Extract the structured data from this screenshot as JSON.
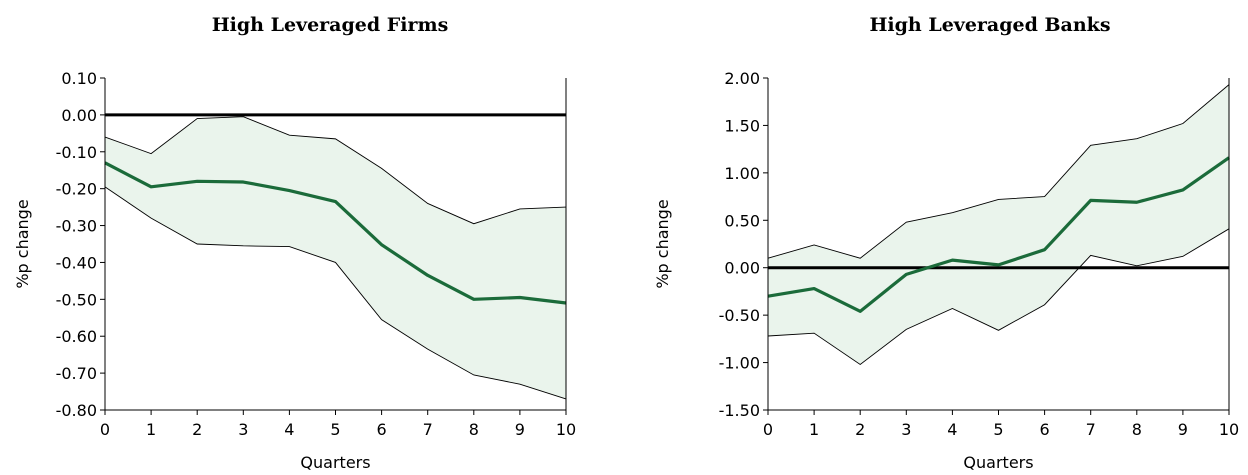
{
  "chart_data": [
    {
      "type": "line",
      "title": "High Leveraged Firms",
      "xlabel": "Quarters",
      "ylabel": "%p change",
      "x": [
        0,
        1,
        2,
        3,
        4,
        5,
        6,
        7,
        8,
        9,
        10
      ],
      "xlim": [
        0,
        10
      ],
      "ylim": [
        -0.8,
        0.1
      ],
      "yticks": [
        "0.10",
        "0.00",
        "-0.10",
        "-0.20",
        "-0.30",
        "-0.40",
        "-0.50",
        "-0.60",
        "-0.70",
        "-0.80"
      ],
      "xticks": [
        "0",
        "1",
        "2",
        "3",
        "4",
        "5",
        "6",
        "7",
        "8",
        "9",
        "10"
      ],
      "reference_line": 0,
      "grid": false,
      "series": [
        {
          "role": "upper",
          "values": [
            -0.06,
            -0.105,
            -0.01,
            -0.005,
            -0.055,
            -0.065,
            -0.145,
            -0.24,
            -0.295,
            -0.255,
            -0.25
          ]
        },
        {
          "role": "estimate",
          "values": [
            -0.13,
            -0.195,
            -0.18,
            -0.182,
            -0.205,
            -0.235,
            -0.352,
            -0.435,
            -0.5,
            -0.495,
            -0.51
          ]
        },
        {
          "role": "lower",
          "values": [
            -0.195,
            -0.28,
            -0.35,
            -0.355,
            -0.357,
            -0.4,
            -0.555,
            -0.635,
            -0.705,
            -0.73,
            -0.77
          ]
        }
      ],
      "colors": {
        "line": "#1b6b3a",
        "band": "#eaf4ec",
        "bound": "#000000"
      }
    },
    {
      "type": "line",
      "title": "High Leveraged Banks",
      "xlabel": "Quarters",
      "ylabel": "%p change",
      "x": [
        0,
        1,
        2,
        3,
        4,
        5,
        6,
        7,
        8,
        9,
        10
      ],
      "xlim": [
        0,
        10
      ],
      "ylim": [
        -1.5,
        2.0
      ],
      "yticks": [
        "2.00",
        "1.50",
        "1.00",
        "0.50",
        "0.00",
        "-0.50",
        "-1.00",
        "-1.50"
      ],
      "xticks": [
        "0",
        "1",
        "2",
        "3",
        "4",
        "5",
        "6",
        "7",
        "8",
        "9",
        "10"
      ],
      "reference_line": 0,
      "grid": false,
      "series": [
        {
          "role": "upper",
          "values": [
            0.1,
            0.24,
            0.1,
            0.48,
            0.58,
            0.72,
            0.75,
            1.29,
            1.36,
            1.52,
            1.93
          ]
        },
        {
          "role": "estimate",
          "values": [
            -0.3,
            -0.22,
            -0.46,
            -0.07,
            0.08,
            0.03,
            0.19,
            0.71,
            0.69,
            0.82,
            1.16
          ]
        },
        {
          "role": "lower",
          "values": [
            -0.72,
            -0.69,
            -1.02,
            -0.65,
            -0.43,
            -0.66,
            -0.39,
            0.13,
            0.02,
            0.12,
            0.41
          ]
        }
      ],
      "colors": {
        "line": "#1b6b3a",
        "band": "#eaf4ec",
        "bound": "#000000"
      }
    }
  ]
}
